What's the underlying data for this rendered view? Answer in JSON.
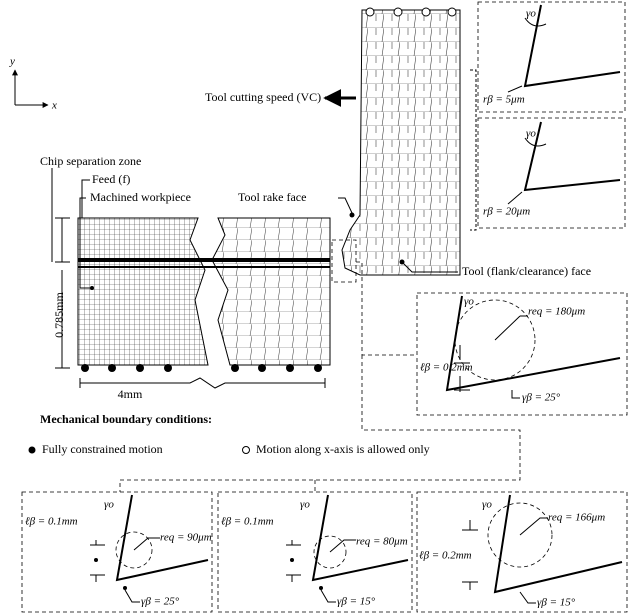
{
  "axes": {
    "y": "y",
    "x": "x"
  },
  "labels": {
    "cutting_speed": "Tool cutting speed (VC)",
    "chip_zone": "Chip separation zone",
    "feed": "Feed (f)",
    "workpiece": "Machined workpiece",
    "rake_face": "Tool rake face",
    "flank_face": "Tool (flank/clearance) face",
    "height": "0.785mm",
    "width": "4mm"
  },
  "boundary": {
    "title": "Mechanical boundary conditions:",
    "fixed": "Fully constrained motion",
    "x_only": "Motion along x-axis is allowed only"
  },
  "insets": [
    {
      "gamma_o": "γo",
      "r_beta": "rβ = 5μm"
    },
    {
      "gamma_o": "γo",
      "r_beta": "rβ = 20μm"
    },
    {
      "gamma_o": "γo",
      "l_beta": "ℓβ = 0.2mm",
      "r_eq": "req = 180μm",
      "gamma_beta": "γβ = 25°"
    },
    {
      "gamma_o": "γo",
      "l_beta": "ℓβ = 0.1mm",
      "r_eq": "req = 90μm",
      "gamma_beta": "γβ = 25°"
    },
    {
      "gamma_o": "γo",
      "l_beta": "ℓβ = 0.1mm",
      "r_eq": "req = 80μm",
      "gamma_beta": "γβ = 15°"
    },
    {
      "gamma_o": "γo",
      "l_beta": "ℓβ = 0.2mm",
      "r_eq": "req = 166μm",
      "gamma_beta": "γβ = 15°"
    }
  ]
}
